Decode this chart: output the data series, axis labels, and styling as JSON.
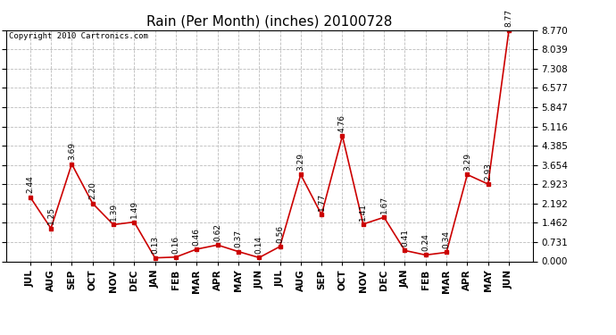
{
  "title": "Rain (Per Month) (inches) 20100728",
  "copyright": "Copyright 2010 Cartronics.com",
  "months": [
    "JUL",
    "AUG",
    "SEP",
    "OCT",
    "NOV",
    "DEC",
    "JAN",
    "FEB",
    "MAR",
    "APR",
    "MAY",
    "JUN",
    "JUL",
    "AUG",
    "SEP",
    "OCT",
    "NOV",
    "DEC",
    "JAN",
    "FEB",
    "MAR",
    "APR",
    "MAY",
    "JUN"
  ],
  "values": [
    2.44,
    1.25,
    3.69,
    2.2,
    1.39,
    1.49,
    0.13,
    0.16,
    0.46,
    0.62,
    0.37,
    0.14,
    0.56,
    3.29,
    1.77,
    4.76,
    1.41,
    1.67,
    0.41,
    0.24,
    0.34,
    3.29,
    2.93,
    8.77
  ],
  "labels": [
    "2.44",
    "1.25",
    "3.69",
    "2.20",
    "1.39",
    "1.49",
    "0.13",
    "0.16",
    "0.46",
    "0.62",
    "0.37",
    "0.14",
    "0.56",
    "3.29",
    "1.77",
    "4.76",
    "1.41",
    "1.67",
    "0.41",
    "0.24",
    "0.34",
    "3.29",
    "2.93",
    "8.77"
  ],
  "line_color": "#cc0000",
  "marker_color": "#cc0000",
  "bg_color": "#ffffff",
  "grid_color": "#bbbbbb",
  "ylim": [
    0.0,
    8.77
  ],
  "yticks": [
    0.0,
    0.731,
    1.462,
    2.192,
    2.923,
    3.654,
    4.385,
    5.116,
    5.847,
    6.577,
    7.308,
    8.039,
    8.77
  ],
  "title_fontsize": 11,
  "label_fontsize": 6.5,
  "tick_fontsize": 7.5,
  "copyright_fontsize": 6.5
}
